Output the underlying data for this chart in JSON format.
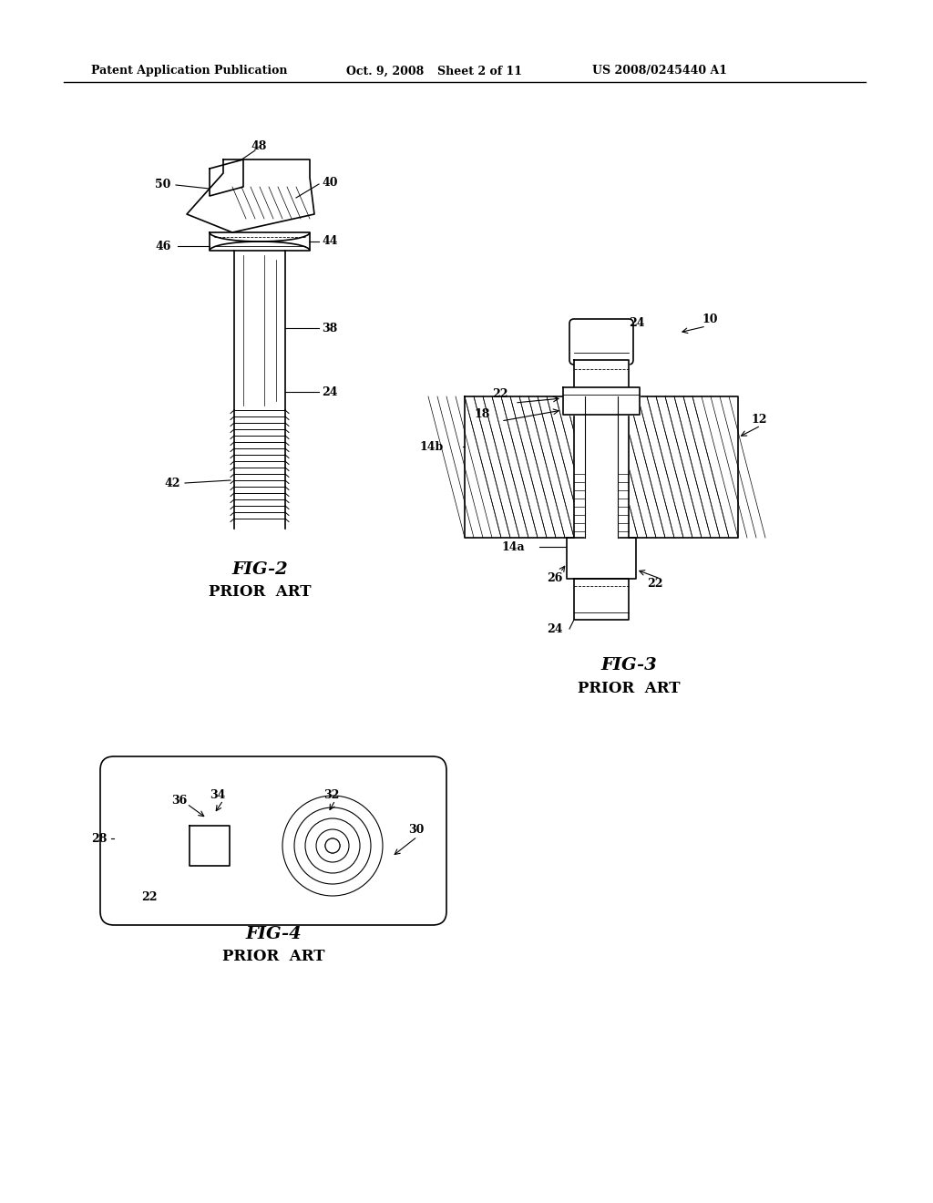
{
  "background_color": "#ffffff",
  "header_text": "Patent Application Publication",
  "header_date": "Oct. 9, 2008",
  "header_sheet": "Sheet 2 of 11",
  "header_patent": "US 2008/0245440 A1",
  "fig2_label": "FIG-2",
  "fig2_subtitle": "PRIOR  ART",
  "fig3_label": "FIG-3",
  "fig3_subtitle": "PRIOR  ART",
  "fig4_label": "FIG-4",
  "fig4_subtitle": "PRIOR  ART"
}
